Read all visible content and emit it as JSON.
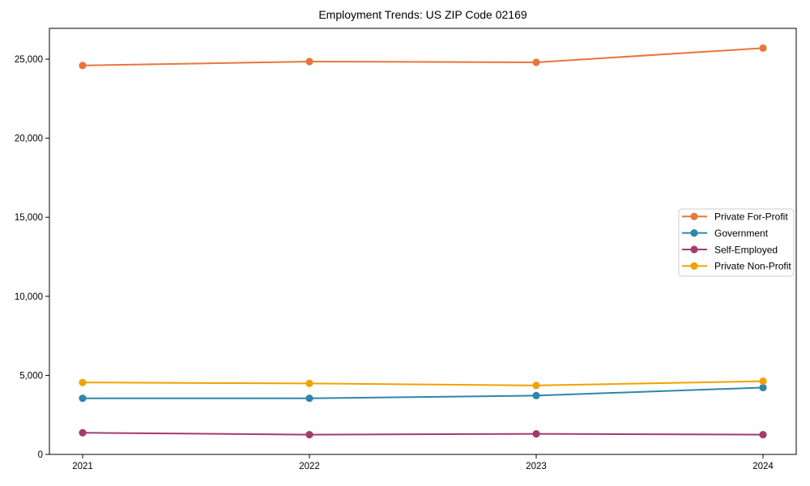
{
  "chart_data": {
    "type": "line",
    "title": "Employment Trends: US ZIP Code 02169",
    "xlabel": "",
    "ylabel": "",
    "categories": [
      "2021",
      "2022",
      "2023",
      "2024"
    ],
    "series": [
      {
        "name": "Private For-Profit",
        "color": "#E8763C",
        "marker": "circle",
        "values": [
          24600,
          24850,
          24800,
          25700
        ]
      },
      {
        "name": "Government",
        "color": "#2E86AB",
        "marker": "circle",
        "values": [
          3550,
          3550,
          3720,
          4230
        ]
      },
      {
        "name": "Self-Employed",
        "color": "#A23B72",
        "marker": "circle",
        "values": [
          1370,
          1250,
          1300,
          1250
        ]
      },
      {
        "name": "Private Non-Profit",
        "color": "#F0A202",
        "marker": "circle",
        "values": [
          4550,
          4490,
          4360,
          4630
        ]
      }
    ],
    "ylim": [
      0,
      26950
    ],
    "yticks": [
      0,
      5000,
      10000,
      15000,
      20000,
      25000
    ],
    "ytick_labels": [
      "0",
      "5,000",
      "10,000",
      "15,000",
      "20,000",
      "25,000"
    ],
    "grid": false,
    "legend_position": "center-right",
    "frame_color": "#000000",
    "legend_border_color": "#cccccc",
    "legend_background": "#ffffff"
  }
}
